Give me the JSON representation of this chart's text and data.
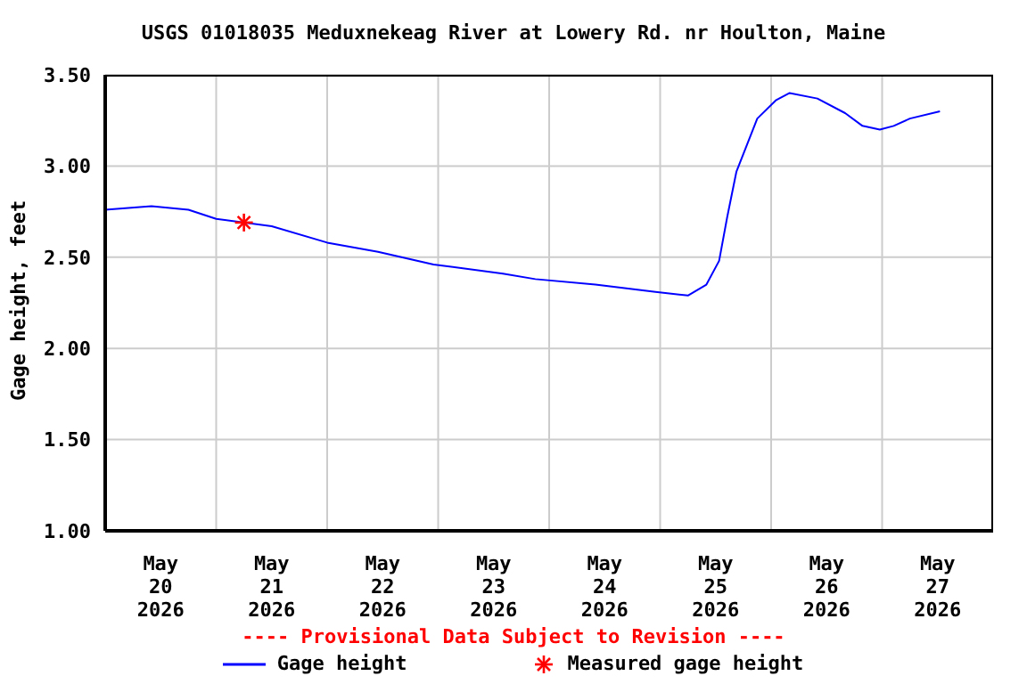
{
  "chart_data": {
    "type": "line",
    "title": "USGS 01018035 Meduxnekeag River at Lowery Rd. nr Houlton, Maine",
    "ylabel": "Gage height, feet",
    "annotations": [
      "---- Provisional Data Subject to Revision ----"
    ],
    "x": [
      "2026-05-20T00:00",
      "2026-05-20T10:00",
      "2026-05-20T18:00",
      "2026-05-21T00:00",
      "2026-05-21T12:00",
      "2026-05-22T00:00",
      "2026-05-22T11:00",
      "2026-05-22T23:00",
      "2026-05-23T14:00",
      "2026-05-23T21:00",
      "2026-05-24T10:00",
      "2026-05-24T23:00",
      "2026-05-25T06:00",
      "2026-05-25T10:00",
      "2026-05-25T12:45",
      "2026-05-25T14:30",
      "2026-05-25T16:30",
      "2026-05-25T21:00",
      "2026-05-26T01:00",
      "2026-05-26T04:00",
      "2026-05-26T10:00",
      "2026-05-26T16:00",
      "2026-05-26T19:45",
      "2026-05-26T23:30",
      "2026-05-27T02:30",
      "2026-05-27T06:00",
      "2026-05-27T12:30"
    ],
    "series": [
      {
        "name": "Gage height",
        "color": "#0000ff",
        "marker": "none",
        "values": [
          2.76,
          2.78,
          2.76,
          2.71,
          2.67,
          2.58,
          2.53,
          2.46,
          2.41,
          2.38,
          2.35,
          2.31,
          2.29,
          2.35,
          2.48,
          2.72,
          2.97,
          3.26,
          3.36,
          3.4,
          3.37,
          3.29,
          3.22,
          3.2,
          3.22,
          3.26,
          3.3
        ]
      },
      {
        "name": "Measured gage height",
        "type": "scatter",
        "color": "#ff0000",
        "marker": "cross",
        "x": [
          "2026-05-21T06:00"
        ],
        "values": [
          2.69
        ]
      }
    ],
    "xlim": [
      "2026-05-20T00:00",
      "2026-05-28T00:00"
    ],
    "xticks": [
      {
        "value": "2026-05-20T12:00",
        "label": "May\n20\n2026"
      },
      {
        "value": "2026-05-21T00:00",
        "label": null
      },
      {
        "value": "2026-05-21T12:00",
        "label": "May\n21\n2026"
      },
      {
        "value": "2026-05-22T00:00",
        "label": null
      },
      {
        "value": "2026-05-22T12:00",
        "label": "May\n22\n2026"
      },
      {
        "value": "2026-05-23T00:00",
        "label": null
      },
      {
        "value": "2026-05-23T12:00",
        "label": "May\n23\n2026"
      },
      {
        "value": "2026-05-24T00:00",
        "label": null
      },
      {
        "value": "2026-05-24T12:00",
        "label": "May\n24\n2026"
      },
      {
        "value": "2026-05-25T00:00",
        "label": null
      },
      {
        "value": "2026-05-25T12:00",
        "label": "May\n25\n2026"
      },
      {
        "value": "2026-05-26T00:00",
        "label": null
      },
      {
        "value": "2026-05-26T12:00",
        "label": "May\n26\n2026"
      },
      {
        "value": "2026-05-27T00:00",
        "label": null
      },
      {
        "value": "2026-05-27T12:00",
        "label": "May\n27\n2026"
      }
    ],
    "ylim": [
      1.0,
      3.5
    ],
    "yticks": [
      {
        "value": 1.0,
        "label": "1.00"
      },
      {
        "value": 1.5,
        "label": "1.50"
      },
      {
        "value": 2.0,
        "label": "2.00"
      },
      {
        "value": 2.5,
        "label": "2.50"
      },
      {
        "value": 3.0,
        "label": "3.00"
      },
      {
        "value": 3.5,
        "label": "3.50"
      }
    ],
    "grid": true,
    "legend": "bottom"
  }
}
